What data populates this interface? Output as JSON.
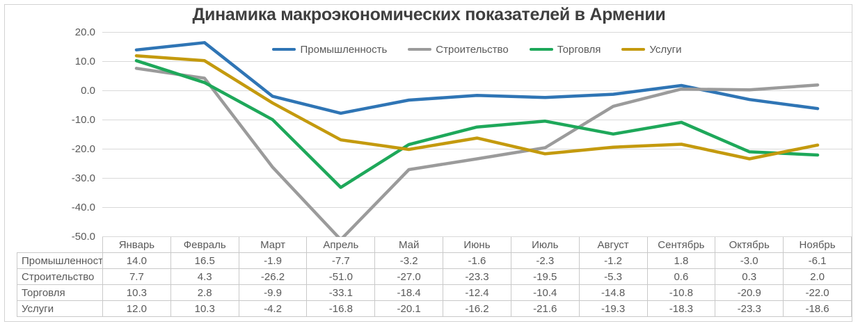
{
  "title": "Динамика макроэкономических показателей в Армении",
  "chart_data": {
    "type": "line",
    "title": "Динамика макроэкономических показателей в Армении",
    "categories": [
      "Январь",
      "Февраль",
      "Март",
      "Апрель",
      "Май",
      "Июнь",
      "Июль",
      "Август",
      "Сентябрь",
      "Октябрь",
      "Ноябрь"
    ],
    "series": [
      {
        "name": "Промышленность",
        "color": "#2F75B5",
        "values": [
          14.0,
          16.5,
          -1.9,
          -7.7,
          -3.2,
          -1.6,
          -2.3,
          -1.2,
          1.8,
          -3.0,
          -6.1
        ]
      },
      {
        "name": "Строительство",
        "color": "#9B9B9B",
        "values": [
          7.7,
          4.3,
          -26.2,
          -51.0,
          -27.0,
          -23.3,
          -19.5,
          -5.3,
          0.6,
          0.3,
          2.0
        ]
      },
      {
        "name": "Торговля",
        "color": "#1EA85A",
        "values": [
          10.3,
          2.8,
          -9.9,
          -33.1,
          -18.4,
          -12.4,
          -10.4,
          -14.8,
          -10.8,
          -20.9,
          -22.0
        ]
      },
      {
        "name": "Услуги",
        "color": "#C49A0E",
        "values": [
          12.0,
          10.3,
          -4.2,
          -16.8,
          -20.1,
          -16.2,
          -21.6,
          -19.3,
          -18.3,
          -23.3,
          -18.6
        ]
      }
    ],
    "yticks": [
      20,
      10,
      0,
      -10,
      -20,
      -30,
      -40,
      -50
    ],
    "ylim": [
      -50,
      20
    ],
    "grid": true,
    "legend_position": "top",
    "value_decimals": 1,
    "xlabel": "",
    "ylabel": "",
    "colors": {
      "gridline": "#D9D9D9",
      "axis_text": "#595959",
      "title_text": "#3F3F3F",
      "table_border": "#C9C9C9",
      "table_text": "#595959",
      "frame_border": "#D2D2D2"
    }
  }
}
